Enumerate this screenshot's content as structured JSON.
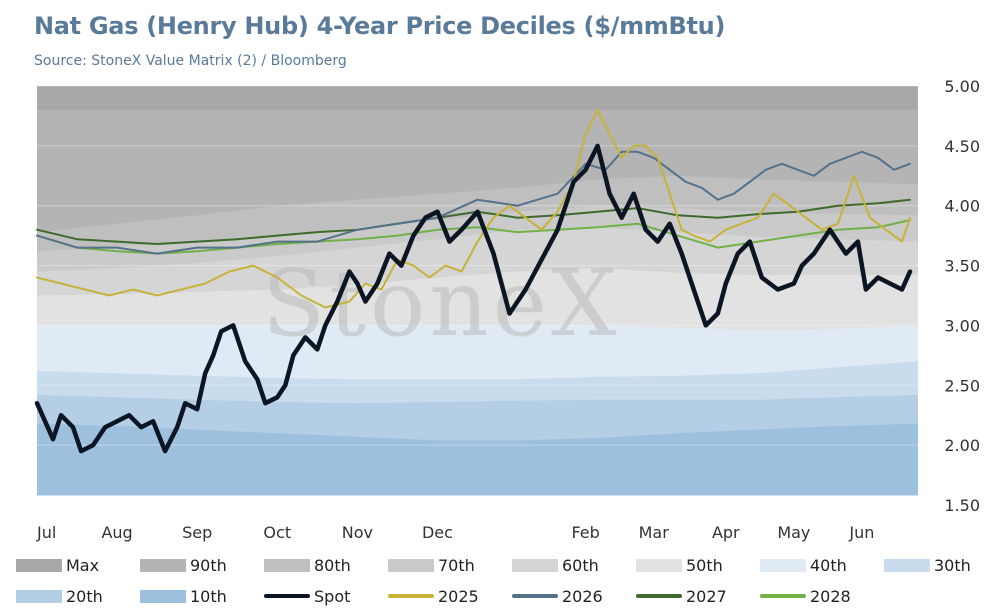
{
  "header": {
    "title": "Nat Gas (Henry Hub) 4-Year Price Deciles ($/mmBtu)",
    "subtitle": "Source: StoneX Value Matrix (2) / Bloomberg"
  },
  "watermark": "StoneX",
  "chart_data": {
    "type": "area",
    "title": "Nat Gas (Henry Hub) 4-Year Price Deciles ($/mmBtu)",
    "subtitle": "Source: StoneX Value Matrix (2) / Bloomberg",
    "ylim": [
      1.5,
      5.0
    ],
    "yticks": [
      "5.00",
      "4.50",
      "4.00",
      "3.50",
      "3.00",
      "2.50",
      "2.00",
      "1.50"
    ],
    "y_axis_position": "right",
    "x_months": [
      "Jul",
      "Aug",
      "Sep",
      "Oct",
      "Nov",
      "Dec",
      "Feb",
      "Mar",
      "Apr",
      "May",
      "Jun"
    ],
    "x_positions": [
      0,
      1,
      2,
      3,
      4,
      5,
      6.85,
      7.7,
      8.6,
      9.45,
      10.3
    ],
    "x_max": 11,
    "grid": true,
    "legend_placement": "bottom",
    "bands": [
      {
        "name": "Max",
        "color": "#a8a8a8",
        "top": [
          5.0,
          5.0,
          5.0,
          5.0,
          5.0,
          5.0,
          5.0,
          5.0,
          5.0,
          5.0,
          5.0,
          5.0
        ]
      },
      {
        "name": "90th",
        "color": "#b4b4b4",
        "top": [
          4.8,
          4.8,
          4.8,
          4.8,
          4.8,
          4.8,
          4.8,
          4.8,
          4.8,
          4.8,
          4.8,
          4.8
        ]
      },
      {
        "name": "80th",
        "color": "#bfbfbf",
        "top": [
          3.78,
          3.85,
          3.92,
          4.0,
          4.05,
          4.1,
          4.15,
          4.22,
          4.25,
          4.22,
          4.2,
          4.18
        ]
      },
      {
        "name": "70th",
        "color": "#cacaca",
        "top": [
          3.62,
          3.66,
          3.7,
          3.75,
          3.82,
          3.88,
          3.95,
          4.0,
          3.98,
          3.95,
          3.93,
          3.92
        ]
      },
      {
        "name": "60th",
        "color": "#d5d5d5",
        "top": [
          3.45,
          3.48,
          3.52,
          3.58,
          3.65,
          3.72,
          3.8,
          3.82,
          3.78,
          3.74,
          3.72,
          3.7
        ]
      },
      {
        "name": "50th",
        "color": "#e2e2e2",
        "top": [
          3.25,
          3.26,
          3.28,
          3.3,
          3.34,
          3.4,
          3.45,
          3.48,
          3.44,
          3.42,
          3.42,
          3.42
        ]
      },
      {
        "name": "40th",
        "color": "#dfeaf4",
        "top": [
          3.0,
          3.0,
          3.0,
          3.0,
          3.0,
          3.0,
          3.0,
          3.0,
          2.98,
          2.96,
          2.97,
          3.0
        ]
      },
      {
        "name": "30th",
        "color": "#c9dced",
        "top": [
          2.62,
          2.6,
          2.58,
          2.56,
          2.55,
          2.55,
          2.55,
          2.57,
          2.58,
          2.6,
          2.65,
          2.7
        ]
      },
      {
        "name": "20th",
        "color": "#b4cee6",
        "top": [
          2.42,
          2.4,
          2.38,
          2.36,
          2.35,
          2.36,
          2.37,
          2.38,
          2.38,
          2.38,
          2.4,
          2.42
        ]
      },
      {
        "name": "10th",
        "color": "#9ec0df",
        "top": [
          2.18,
          2.16,
          2.13,
          2.1,
          2.07,
          2.04,
          2.04,
          2.06,
          2.1,
          2.13,
          2.16,
          2.18
        ]
      }
    ],
    "band_floor": 1.58,
    "series": [
      {
        "name": "Spot",
        "color": "#0c1524",
        "width": 4.5,
        "x": [
          0,
          0.1,
          0.2,
          0.3,
          0.45,
          0.55,
          0.7,
          0.85,
          1,
          1.15,
          1.3,
          1.45,
          1.6,
          1.75,
          1.85,
          2,
          2.1,
          2.2,
          2.3,
          2.45,
          2.6,
          2.75,
          2.85,
          3,
          3.1,
          3.2,
          3.35,
          3.5,
          3.6,
          3.75,
          3.9,
          4,
          4.1,
          4.25,
          4.4,
          4.55,
          4.7,
          4.85,
          5,
          5.15,
          5.3,
          5.5,
          5.7,
          5.9,
          6.1,
          6.3,
          6.5,
          6.7,
          6.85,
          7,
          7.15,
          7.3,
          7.45,
          7.6,
          7.75,
          7.9,
          8.05,
          8.2,
          8.35,
          8.5,
          8.6,
          8.75,
          8.9,
          9.05,
          9.25,
          9.45,
          9.55,
          9.7,
          9.9,
          10.1,
          10.25,
          10.35,
          10.5,
          10.65,
          10.8,
          10.9
        ],
        "y": [
          2.35,
          2.2,
          2.05,
          2.25,
          2.15,
          1.95,
          2.0,
          2.15,
          2.2,
          2.25,
          2.15,
          2.2,
          1.95,
          2.15,
          2.35,
          2.3,
          2.6,
          2.75,
          2.95,
          3.0,
          2.7,
          2.55,
          2.35,
          2.4,
          2.5,
          2.75,
          2.9,
          2.8,
          3.0,
          3.2,
          3.45,
          3.35,
          3.2,
          3.35,
          3.6,
          3.5,
          3.75,
          3.9,
          3.95,
          3.7,
          3.8,
          3.95,
          3.6,
          3.1,
          3.3,
          3.55,
          3.8,
          4.2,
          4.3,
          4.5,
          4.1,
          3.9,
          4.1,
          3.8,
          3.7,
          3.85,
          3.6,
          3.3,
          3.0,
          3.1,
          3.35,
          3.6,
          3.7,
          3.4,
          3.3,
          3.35,
          3.5,
          3.6,
          3.8,
          3.6,
          3.7,
          3.3,
          3.4,
          3.35,
          3.3,
          3.45
        ]
      },
      {
        "name": "2025",
        "color": "#c8b23a",
        "width": 2,
        "x": [
          0,
          0.3,
          0.6,
          0.9,
          1.2,
          1.5,
          1.8,
          2.1,
          2.4,
          2.7,
          3,
          3.3,
          3.6,
          3.9,
          4.1,
          4.3,
          4.5,
          4.7,
          4.9,
          5.1,
          5.3,
          5.5,
          5.7,
          5.9,
          6.1,
          6.3,
          6.5,
          6.7,
          6.85,
          7,
          7.15,
          7.3,
          7.45,
          7.6,
          7.75,
          7.9,
          8.05,
          8.2,
          8.4,
          8.6,
          8.8,
          9,
          9.2,
          9.4,
          9.6,
          9.8,
          10,
          10.2,
          10.4,
          10.6,
          10.8,
          10.9
        ],
        "y": [
          3.4,
          3.35,
          3.3,
          3.25,
          3.3,
          3.25,
          3.3,
          3.35,
          3.45,
          3.5,
          3.4,
          3.25,
          3.15,
          3.2,
          3.35,
          3.3,
          3.55,
          3.5,
          3.4,
          3.5,
          3.45,
          3.7,
          3.9,
          4.0,
          3.9,
          3.8,
          3.95,
          4.2,
          4.6,
          4.8,
          4.6,
          4.4,
          4.5,
          4.5,
          4.4,
          4.1,
          3.8,
          3.75,
          3.7,
          3.8,
          3.85,
          3.9,
          4.1,
          4.0,
          3.9,
          3.8,
          3.85,
          4.25,
          3.9,
          3.8,
          3.7,
          3.9
        ]
      },
      {
        "name": "2026",
        "color": "#55728a",
        "width": 2,
        "x": [
          0,
          0.5,
          1,
          1.5,
          2,
          2.5,
          3,
          3.5,
          4,
          4.5,
          5,
          5.5,
          6,
          6.5,
          6.85,
          7.1,
          7.3,
          7.5,
          7.7,
          7.9,
          8.1,
          8.3,
          8.5,
          8.7,
          8.9,
          9.1,
          9.3,
          9.5,
          9.7,
          9.9,
          10.1,
          10.3,
          10.5,
          10.7,
          10.9
        ],
        "y": [
          3.75,
          3.65,
          3.65,
          3.6,
          3.65,
          3.65,
          3.7,
          3.7,
          3.8,
          3.85,
          3.9,
          4.05,
          4.0,
          4.1,
          4.35,
          4.3,
          4.45,
          4.45,
          4.4,
          4.3,
          4.2,
          4.15,
          4.05,
          4.1,
          4.2,
          4.3,
          4.35,
          4.3,
          4.25,
          4.35,
          4.4,
          4.45,
          4.4,
          4.3,
          4.35
        ]
      },
      {
        "name": "2027",
        "color": "#3f6a2e",
        "width": 2,
        "x": [
          0,
          0.5,
          1,
          1.5,
          2,
          2.5,
          3,
          3.5,
          4,
          4.5,
          5,
          5.5,
          6,
          6.5,
          7,
          7.5,
          8,
          8.5,
          9,
          9.5,
          10,
          10.5,
          10.9
        ],
        "y": [
          3.8,
          3.72,
          3.7,
          3.68,
          3.7,
          3.72,
          3.75,
          3.78,
          3.8,
          3.85,
          3.9,
          3.95,
          3.9,
          3.92,
          3.95,
          3.98,
          3.92,
          3.9,
          3.93,
          3.95,
          4.0,
          4.02,
          4.05
        ]
      },
      {
        "name": "2028",
        "color": "#72b048",
        "width": 2,
        "x": [
          0,
          0.5,
          1,
          1.5,
          2,
          2.5,
          3,
          3.5,
          4,
          4.5,
          5,
          5.5,
          6,
          6.5,
          7,
          7.5,
          8,
          8.5,
          9,
          9.5,
          10,
          10.5,
          10.9
        ],
        "y": [
          3.75,
          3.65,
          3.62,
          3.6,
          3.62,
          3.65,
          3.68,
          3.7,
          3.72,
          3.75,
          3.8,
          3.82,
          3.78,
          3.8,
          3.82,
          3.85,
          3.75,
          3.65,
          3.7,
          3.75,
          3.8,
          3.82,
          3.88
        ]
      }
    ]
  },
  "legend": [
    {
      "label": "Max",
      "kind": "box",
      "color": "#a8a8a8"
    },
    {
      "label": "90th",
      "kind": "box",
      "color": "#b4b4b4"
    },
    {
      "label": "80th",
      "kind": "box",
      "color": "#bfbfbf"
    },
    {
      "label": "70th",
      "kind": "box",
      "color": "#cacaca"
    },
    {
      "label": "60th",
      "kind": "box",
      "color": "#d5d5d5"
    },
    {
      "label": "50th",
      "kind": "box",
      "color": "#e2e2e2"
    },
    {
      "label": "40th",
      "kind": "box",
      "color": "#dfeaf4"
    },
    {
      "label": "30th",
      "kind": "box",
      "color": "#c9dced"
    },
    {
      "label": "20th",
      "kind": "box",
      "color": "#b4cee6"
    },
    {
      "label": "10th",
      "kind": "box",
      "color": "#9ec0df"
    },
    {
      "label": "Spot",
      "kind": "line",
      "color": "#0c1524"
    },
    {
      "label": "2025",
      "kind": "line",
      "color": "#c8b23a"
    },
    {
      "label": "2026",
      "kind": "line",
      "color": "#55728a"
    },
    {
      "label": "2027",
      "kind": "line",
      "color": "#3f6a2e"
    },
    {
      "label": "2028",
      "kind": "line",
      "color": "#72b048"
    }
  ]
}
